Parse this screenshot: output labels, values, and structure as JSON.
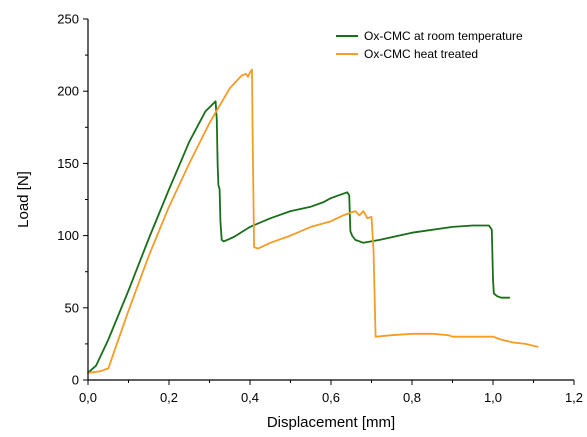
{
  "chart_data": {
    "type": "line",
    "title": "",
    "xlabel": "Displacement [mm]",
    "ylabel": "Load [N]",
    "xlim": [
      0,
      1.2
    ],
    "ylim": [
      0,
      250
    ],
    "x_ticks": [
      0,
      0.2,
      0.4,
      0.6,
      0.8,
      1.0,
      1.2
    ],
    "x_tick_labels": [
      "0,0",
      "0,2",
      "0,4",
      "0,6",
      "0,8",
      "1,0",
      "1,2"
    ],
    "y_ticks": [
      0,
      50,
      100,
      150,
      200,
      250
    ],
    "y_tick_labels": [
      "0",
      "50",
      "100",
      "150",
      "200",
      "250"
    ],
    "grid": false,
    "legend_position": "top-right",
    "series": [
      {
        "name": "Ox-CMC at room temperature",
        "color": "#1a6e1a",
        "x": [
          0.0,
          0.02,
          0.05,
          0.1,
          0.15,
          0.2,
          0.25,
          0.29,
          0.315,
          0.318,
          0.32,
          0.322,
          0.325,
          0.327,
          0.33,
          0.335,
          0.36,
          0.4,
          0.45,
          0.5,
          0.55,
          0.58,
          0.6,
          0.62,
          0.64,
          0.645,
          0.648,
          0.652,
          0.66,
          0.68,
          0.72,
          0.8,
          0.9,
          0.95,
          0.99,
          0.997,
          1.0,
          1.002,
          1.01,
          1.02,
          1.04
        ],
        "y": [
          5,
          10,
          28,
          62,
          98,
          132,
          165,
          186,
          193,
          180,
          150,
          135,
          132,
          110,
          97,
          96,
          99,
          106,
          112,
          117,
          120,
          123,
          126,
          128,
          130,
          128,
          103,
          100,
          97,
          95,
          97,
          102,
          106,
          107,
          107,
          104,
          70,
          60,
          58,
          57,
          57
        ]
      },
      {
        "name": "Ox-CMC heat treated",
        "color": "#f39c26",
        "x": [
          0.0,
          0.03,
          0.05,
          0.08,
          0.1,
          0.15,
          0.2,
          0.25,
          0.3,
          0.35,
          0.38,
          0.39,
          0.395,
          0.4,
          0.405,
          0.407,
          0.41,
          0.42,
          0.45,
          0.5,
          0.55,
          0.6,
          0.63,
          0.65,
          0.66,
          0.67,
          0.68,
          0.69,
          0.7,
          0.705,
          0.71,
          0.75,
          0.8,
          0.85,
          0.89,
          0.9,
          0.95,
          1.0,
          1.02,
          1.05,
          1.08,
          1.11
        ],
        "y": [
          5,
          6,
          8,
          32,
          48,
          86,
          120,
          150,
          178,
          202,
          211,
          212,
          210,
          213,
          215,
          160,
          92,
          91,
          95,
          100,
          106,
          110,
          114,
          116,
          117,
          114,
          117,
          112,
          113,
          90,
          30,
          31,
          32,
          32,
          31,
          30,
          30,
          30,
          28,
          26,
          25,
          23
        ]
      }
    ]
  }
}
